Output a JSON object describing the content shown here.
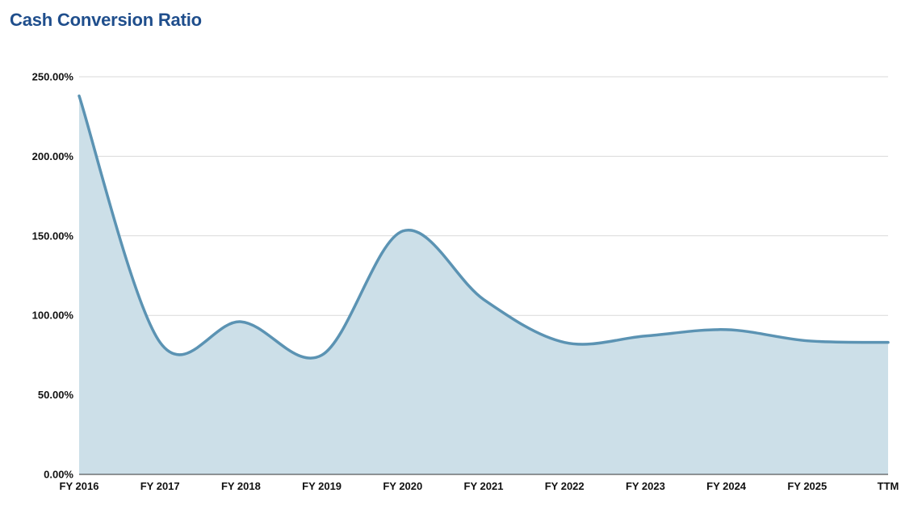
{
  "chart_data": {
    "type": "area",
    "title": "Cash Conversion Ratio",
    "categories": [
      "FY 2016",
      "FY 2017",
      "FY 2018",
      "FY 2019",
      "FY 2020",
      "FY 2021",
      "FY 2022",
      "FY 2023",
      "FY 2024",
      "FY 2025",
      "TTM"
    ],
    "series": [
      {
        "values": [
          238,
          83,
          96,
          75,
          153,
          110,
          83,
          87,
          91,
          84,
          83
        ]
      }
    ],
    "y_ticks": [
      "0.00%",
      "50.00%",
      "100.00%",
      "150.00%",
      "200.00%",
      "250.00%"
    ],
    "ylim": [
      0,
      250
    ],
    "grid": true,
    "legend": "none",
    "colors": {
      "line": "#5b93b3",
      "fill": "#ccdfe8",
      "title": "#1f4e8c"
    }
  }
}
